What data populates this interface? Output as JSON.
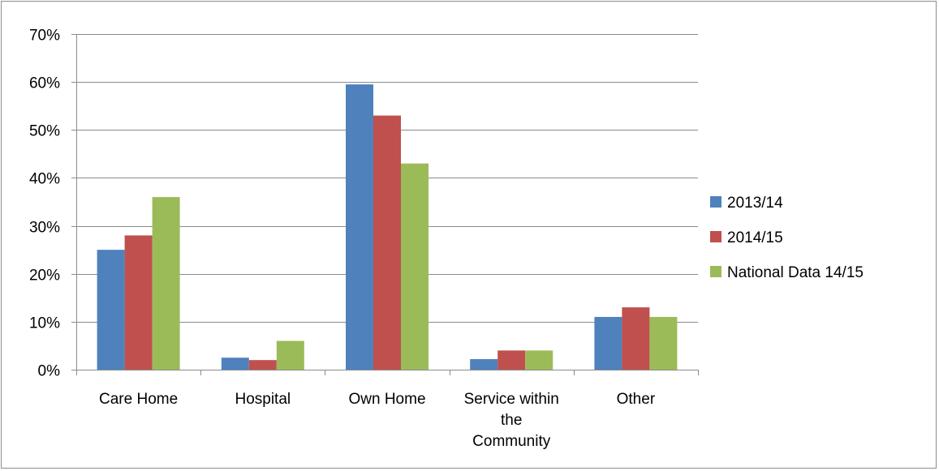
{
  "chart_data": {
    "type": "bar",
    "title": "",
    "xlabel": "",
    "ylabel": "",
    "categories": [
      [
        "Care Home"
      ],
      [
        "Hospital"
      ],
      [
        "Own Home"
      ],
      [
        "Service within",
        "the",
        "Community"
      ],
      [
        "Other"
      ]
    ],
    "series": [
      {
        "name": "2013/14",
        "color": "#4f81bd",
        "values": [
          25,
          2.5,
          59.5,
          2.2,
          11
        ]
      },
      {
        "name": "2014/15",
        "color": "#c0504d",
        "values": [
          28,
          2,
          53,
          4,
          13
        ]
      },
      {
        "name": "National Data 14/15",
        "color": "#9bbb59",
        "values": [
          36,
          6,
          43,
          4,
          11
        ]
      }
    ],
    "ylim": [
      0,
      70
    ],
    "yticks": [
      0,
      10,
      20,
      30,
      40,
      50,
      60,
      70
    ],
    "ytick_labels": [
      "0%",
      "10%",
      "20%",
      "30%",
      "40%",
      "50%",
      "60%",
      "70%"
    ],
    "grid": true,
    "legend_position": "right"
  }
}
